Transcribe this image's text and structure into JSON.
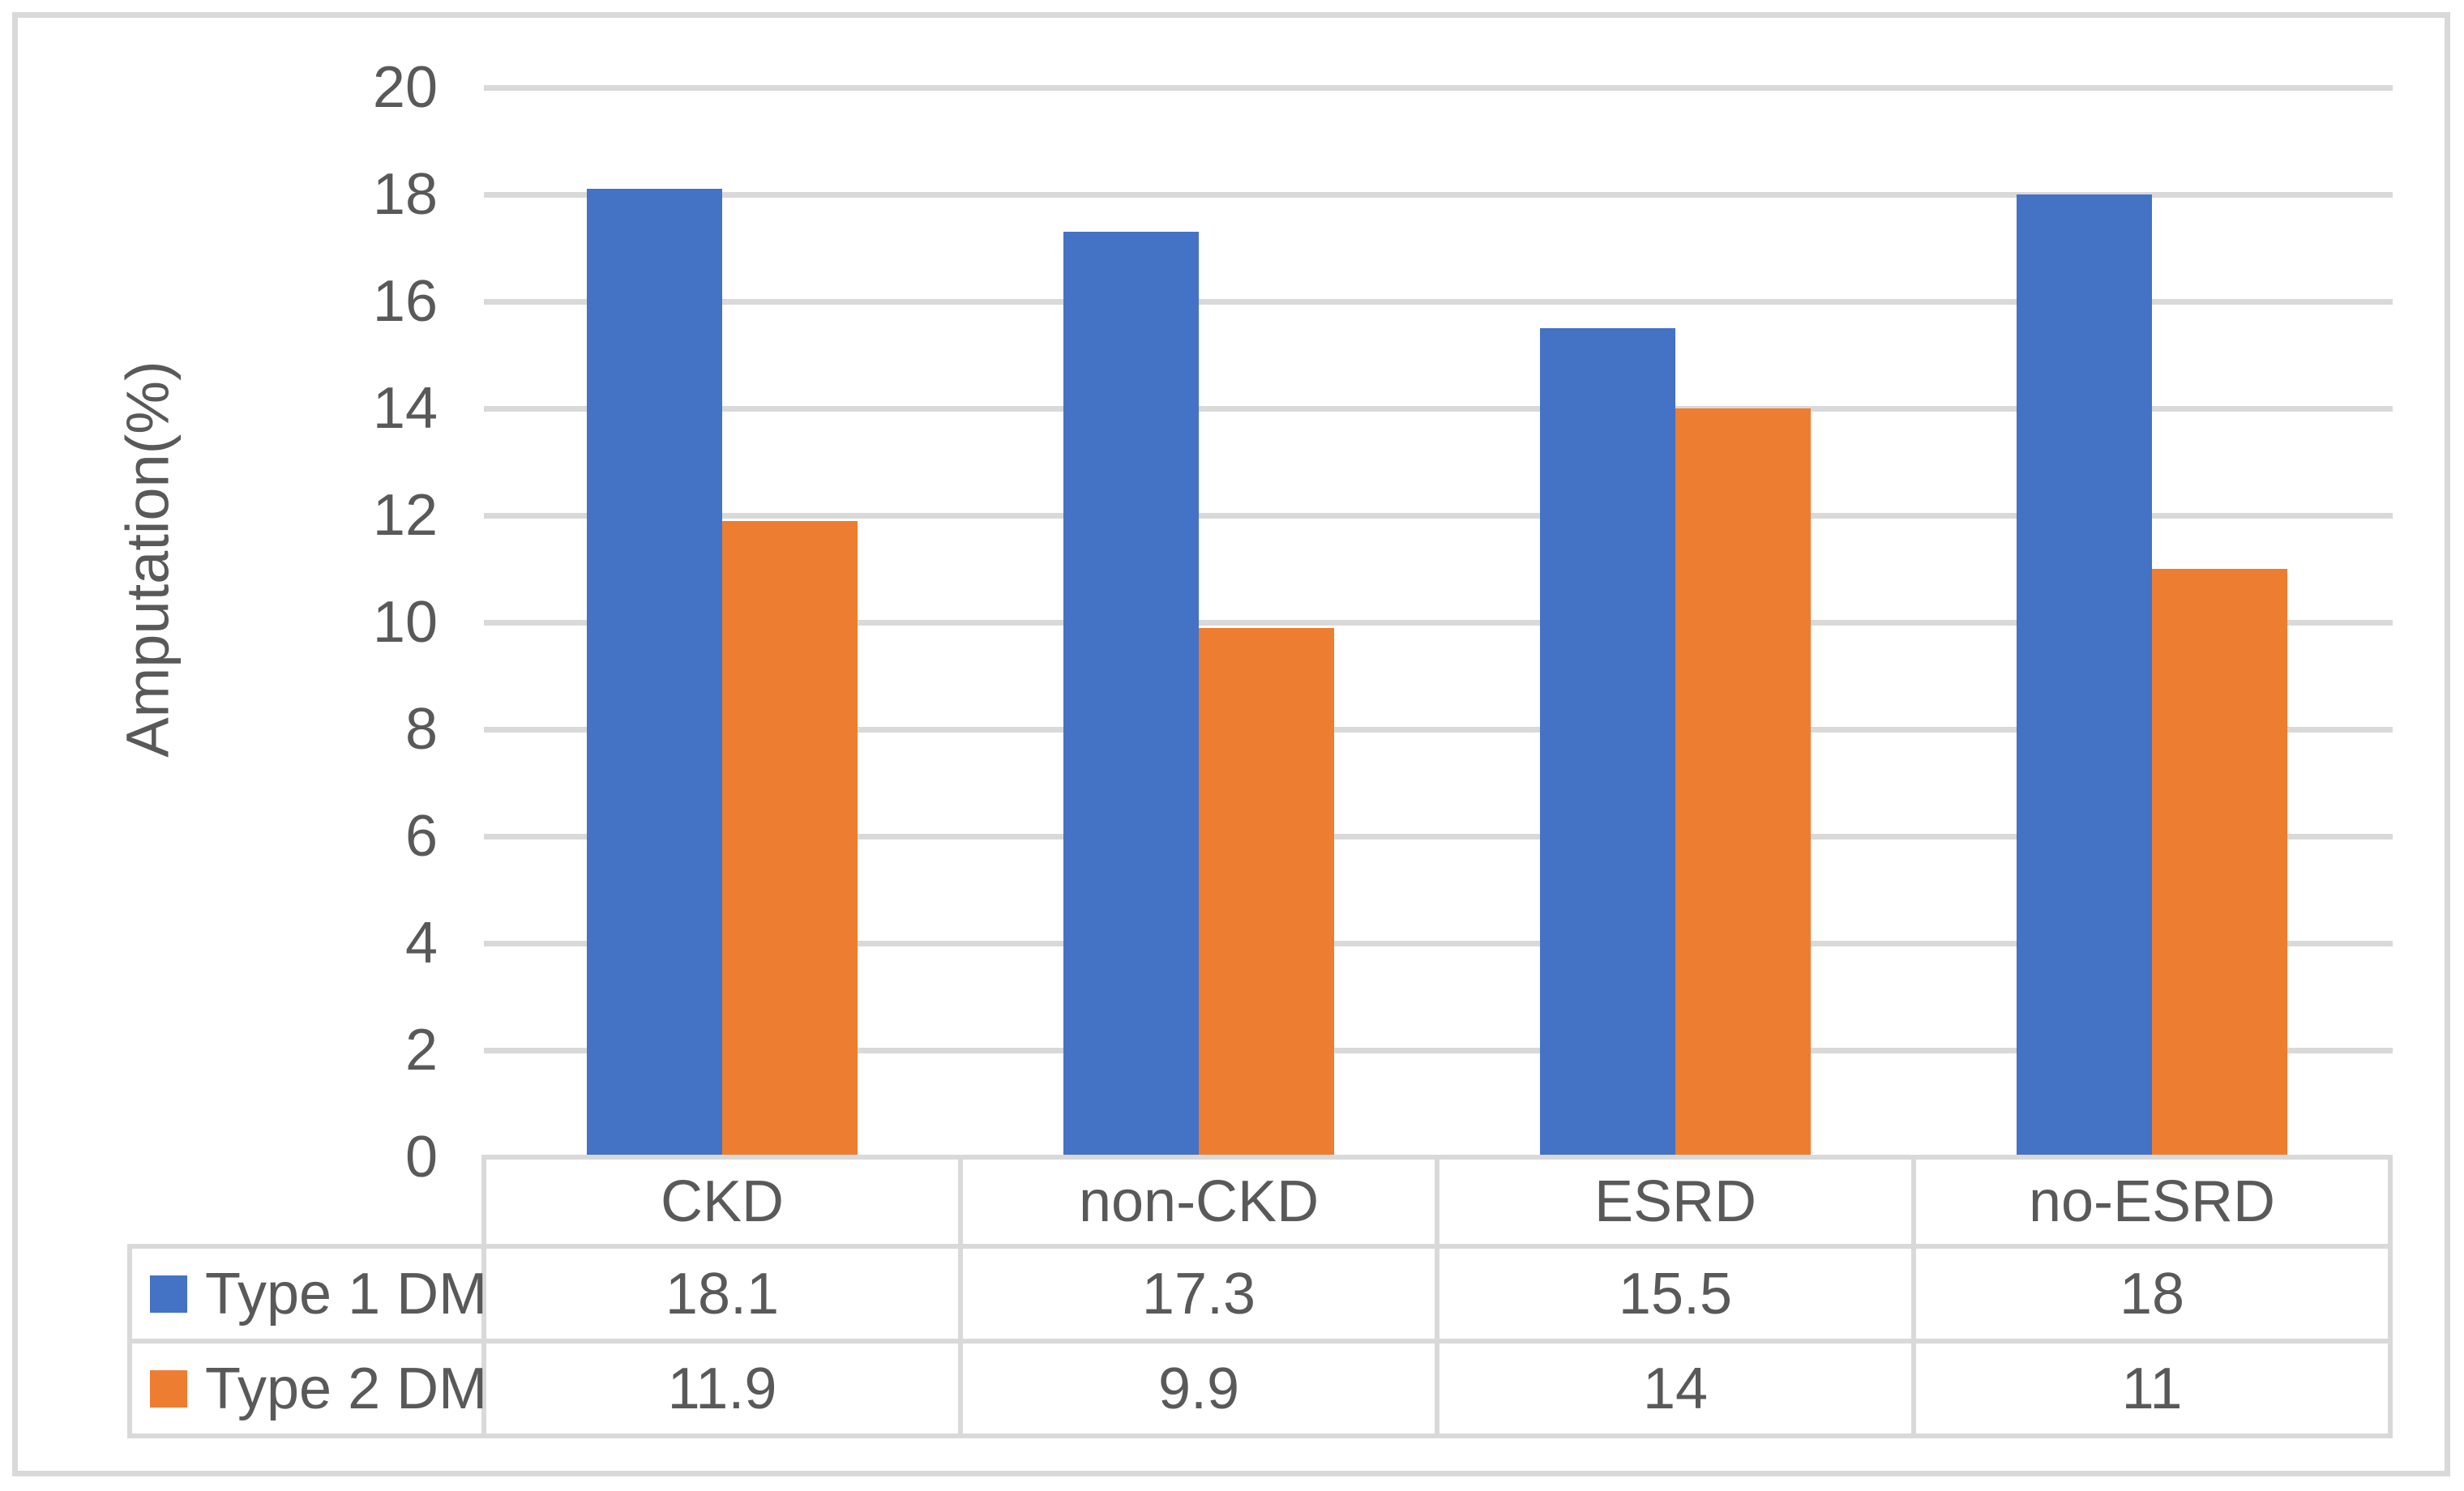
{
  "chart_data": {
    "type": "bar",
    "title": "",
    "ylabel": "Amputation(%)",
    "xlabel": "",
    "categories": [
      "CKD",
      "non-CKD",
      "ESRD",
      "no-ESRD"
    ],
    "series": [
      {
        "name": "Type 1 DM",
        "color": "#4472C4",
        "values": [
          18.1,
          17.3,
          15.5,
          18
        ]
      },
      {
        "name": "Type 2 DM",
        "color": "#ED7D31",
        "values": [
          11.9,
          9.9,
          14,
          11
        ]
      }
    ],
    "ylim": [
      0,
      20
    ],
    "ytick_step": 2,
    "ytick_labels": [
      "20",
      "18",
      "16",
      "14",
      "12",
      "10",
      "8",
      "6",
      "4",
      "2",
      "0"
    ],
    "grid": true,
    "legend_position": "data-table-left",
    "data_table": true
  },
  "colors": {
    "series_blue": "#4472C4",
    "series_orange": "#ED7D31",
    "gridline": "#D9D9D9",
    "table_line": "#D9D9D9",
    "axis_text": "#595959",
    "figure_border": "#D9D9D9",
    "background": "#FFFFFF"
  }
}
